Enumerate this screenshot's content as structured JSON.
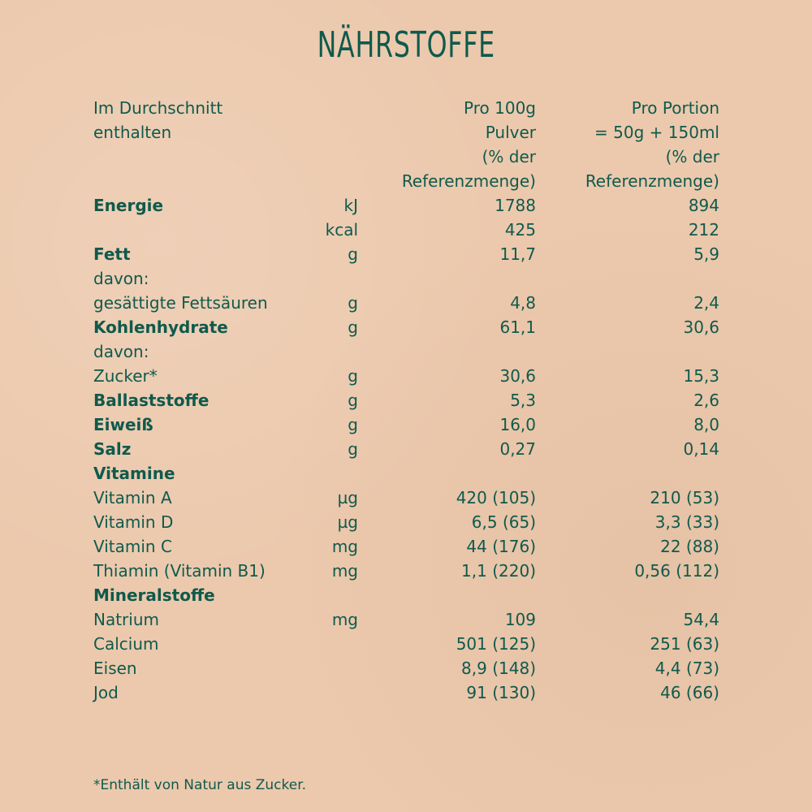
{
  "title": "NÄHRSTOFFE",
  "header": {
    "label_lines": [
      "Im Durchschnitt",
      "enthalten",
      "",
      ""
    ],
    "col1_lines": [
      "Pro 100g",
      "Pulver",
      "(% der",
      "Referenzmenge)"
    ],
    "col2_lines": [
      "Pro Portion",
      "= 50g + 150ml",
      "(% der",
      "Referenzmenge)"
    ]
  },
  "rows": [
    {
      "label": "Energie",
      "unit": "kJ",
      "v1": "1788",
      "v2": "894",
      "bold": true
    },
    {
      "label": "",
      "unit": "kcal",
      "v1": "425",
      "v2": "212",
      "bold": false
    },
    {
      "label": "Fett",
      "unit": "g",
      "v1": "11,7",
      "v2": "5,9",
      "bold": true
    },
    {
      "label": "davon:",
      "unit": "",
      "v1": "",
      "v2": "",
      "bold": false
    },
    {
      "label": "gesättigte Fettsäuren",
      "unit": "g",
      "v1": "4,8",
      "v2": "2,4",
      "bold": false
    },
    {
      "label": "Kohlenhydrate",
      "unit": "g",
      "v1": "61,1",
      "v2": "30,6",
      "bold": true
    },
    {
      "label": "davon:",
      "unit": "",
      "v1": "",
      "v2": "",
      "bold": false
    },
    {
      "label": "Zucker*",
      "unit": "g",
      "v1": "30,6",
      "v2": "15,3",
      "bold": false
    },
    {
      "label": "Ballaststoffe",
      "unit": "g",
      "v1": "5,3",
      "v2": "2,6",
      "bold": true
    },
    {
      "label": "Eiweiß",
      "unit": "g",
      "v1": "16,0",
      "v2": "8,0",
      "bold": true
    },
    {
      "label": "Salz",
      "unit": "g",
      "v1": "0,27",
      "v2": "0,14",
      "bold": true
    },
    {
      "label": "Vitamine",
      "unit": "",
      "v1": "",
      "v2": "",
      "bold": true
    },
    {
      "label": "Vitamin A",
      "unit": "µg",
      "v1": "420 (105)",
      "v2": "210 (53)",
      "bold": false
    },
    {
      "label": "Vitamin D",
      "unit": "µg",
      "v1": "6,5 (65)",
      "v2": "3,3 (33)",
      "bold": false
    },
    {
      "label": "Vitamin C",
      "unit": "mg",
      "v1": "44 (176)",
      "v2": "22 (88)",
      "bold": false
    },
    {
      "label": "Thiamin (Vitamin B1)",
      "unit": "mg",
      "v1": "1,1 (220)",
      "v2": "0,56 (112)",
      "bold": false
    },
    {
      "label": "Mineralstoffe",
      "unit": "",
      "v1": "",
      "v2": "",
      "bold": true
    },
    {
      "label": "Natrium",
      "unit": "mg",
      "v1": "109",
      "v2": "54,4",
      "bold": false
    },
    {
      "label": "Calcium",
      "unit": "",
      "v1": "501 (125)",
      "v2": "251 (63)",
      "bold": false
    },
    {
      "label": "Eisen",
      "unit": "",
      "v1": "8,9 (148)",
      "v2": "4,4 (73)",
      "bold": false
    },
    {
      "label": "Jod",
      "unit": "",
      "v1": "91 (130)",
      "v2": "46 (66)",
      "bold": false
    }
  ],
  "footnote": "*Enthält von Natur aus Zucker.",
  "colors": {
    "background": "#ecc9ad",
    "text": "#0f5a4c"
  }
}
